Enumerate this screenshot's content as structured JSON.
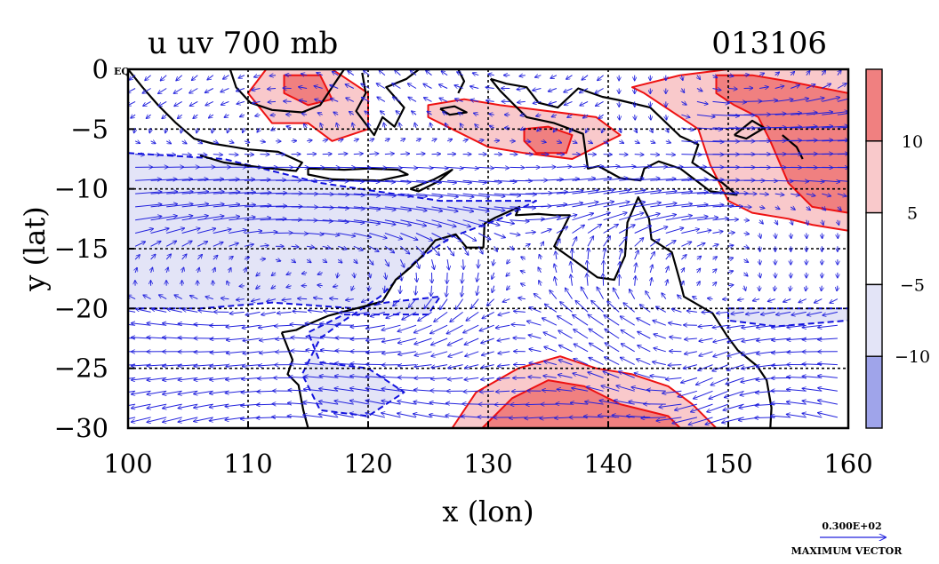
{
  "chart_data": {
    "type": "heatmap",
    "title": "u uv 700 mb",
    "date_label": "013106",
    "xlabel": "x (lon)",
    "ylabel": "y (lat)",
    "xlim": [
      100,
      160
    ],
    "ylim": [
      -30,
      0
    ],
    "x_ticks": [
      100,
      110,
      120,
      130,
      140,
      150,
      160
    ],
    "y_ticks": [
      0,
      -5,
      -10,
      -15,
      -20,
      -25,
      -30
    ],
    "y_tick_labels": [
      "0",
      "−5",
      "−10",
      "−15",
      "−20",
      "−25",
      "−30"
    ],
    "zero_tick_suffix": "EQ",
    "grid": true,
    "colorbar": {
      "tick_labels": [
        "10",
        "5",
        "−5",
        "−10"
      ],
      "bins": [
        {
          "range": "> 10",
          "color": "#f08080"
        },
        {
          "range": "5 to 10",
          "color": "#f9c9cb"
        },
        {
          "range": "-5 to 5",
          "color": "#ffffff"
        },
        {
          "range": "-10 to -5",
          "color": "#e3e4f7"
        },
        {
          "range": "< -10",
          "color": "#9fa4ea"
        }
      ]
    },
    "vector_key": {
      "magnitude_label": "0.300E+02",
      "caption": "MAXIMUM VECTOR",
      "magnitude": 30
    },
    "contour_colors": {
      "positive": "#ee1111",
      "negative": "#1111dd",
      "coast": "#000000",
      "vectors": "#2222dd"
    },
    "regions": [
      {
        "level": "pos_weak",
        "points": [
          [
            111.5,
            0
          ],
          [
            117,
            0
          ],
          [
            120,
            -2
          ],
          [
            120,
            -5
          ],
          [
            117,
            -6
          ],
          [
            115,
            -4.5
          ],
          [
            112,
            -4.5
          ],
          [
            110,
            -2
          ]
        ]
      },
      {
        "level": "pos_strong",
        "points": [
          [
            113,
            -0.5
          ],
          [
            116,
            -0.5
          ],
          [
            117,
            -2.5
          ],
          [
            115,
            -3
          ],
          [
            113,
            -2
          ]
        ]
      },
      {
        "level": "pos_weak",
        "points": [
          [
            125,
            -3
          ],
          [
            128,
            -2.5
          ],
          [
            131,
            -3
          ],
          [
            135,
            -3.5
          ],
          [
            139,
            -4
          ],
          [
            141,
            -5.5
          ],
          [
            137,
            -7.5
          ],
          [
            133,
            -7
          ],
          [
            130,
            -6.5
          ],
          [
            127,
            -5
          ],
          [
            125,
            -4
          ]
        ]
      },
      {
        "level": "pos_strong",
        "points": [
          [
            133,
            -5
          ],
          [
            135,
            -4.8
          ],
          [
            137,
            -5.5
          ],
          [
            136.5,
            -7
          ],
          [
            134,
            -7
          ],
          [
            133,
            -6
          ]
        ]
      },
      {
        "level": "pos_weak",
        "points": [
          [
            142,
            -1.5
          ],
          [
            146,
            -0.5
          ],
          [
            150,
            0
          ],
          [
            156,
            0
          ],
          [
            160,
            0
          ],
          [
            160,
            -13.5
          ],
          [
            157,
            -13
          ],
          [
            155,
            -12.5
          ],
          [
            152,
            -12
          ],
          [
            150,
            -11
          ],
          [
            148.5,
            -8
          ],
          [
            147.5,
            -5
          ],
          [
            144.5,
            -3
          ],
          [
            143,
            -2
          ]
        ]
      },
      {
        "level": "pos_strong",
        "points": [
          [
            149,
            -0.5
          ],
          [
            152,
            -0.5
          ],
          [
            155,
            -1
          ],
          [
            160,
            -2
          ],
          [
            160,
            -12
          ],
          [
            157,
            -11.5
          ],
          [
            155,
            -9.5
          ],
          [
            153.5,
            -6
          ],
          [
            152.5,
            -4
          ],
          [
            150.5,
            -3
          ],
          [
            149,
            -2
          ]
        ]
      },
      {
        "level": "pos_weak",
        "points": [
          [
            127,
            -30
          ],
          [
            129,
            -27
          ],
          [
            132.5,
            -25
          ],
          [
            136,
            -24
          ],
          [
            139,
            -25
          ],
          [
            142,
            -25.5
          ],
          [
            145,
            -26.5
          ],
          [
            147,
            -28
          ],
          [
            149,
            -30
          ]
        ]
      },
      {
        "level": "pos_strong",
        "points": [
          [
            129.5,
            -30
          ],
          [
            132,
            -27.5
          ],
          [
            135,
            -26
          ],
          [
            138,
            -26.5
          ],
          [
            141,
            -28
          ],
          [
            145,
            -29
          ],
          [
            146,
            -30
          ]
        ]
      },
      {
        "level": "neg_weak",
        "points": [
          [
            100,
            -7
          ],
          [
            108,
            -7.5
          ],
          [
            116,
            -9.5
          ],
          [
            126,
            -11
          ],
          [
            134,
            -11
          ],
          [
            131,
            -12.5
          ],
          [
            127,
            -14
          ],
          [
            124,
            -16
          ],
          [
            121,
            -19
          ],
          [
            118,
            -21
          ],
          [
            116,
            -22.5
          ],
          [
            114.5,
            -25.5
          ],
          [
            116,
            -28.5
          ],
          [
            120,
            -29
          ],
          [
            123,
            -27
          ],
          [
            120,
            -25
          ],
          [
            116,
            -24.5
          ],
          [
            115,
            -22
          ],
          [
            118,
            -20.5
          ],
          [
            125,
            -20.5
          ],
          [
            126,
            -19
          ],
          [
            121.5,
            -19.5
          ],
          [
            119,
            -20
          ],
          [
            112,
            -19.5
          ],
          [
            106,
            -20
          ],
          [
            100,
            -20
          ]
        ]
      },
      {
        "level": "neg_weak",
        "points": [
          [
            150,
            -20
          ],
          [
            160,
            -20
          ],
          [
            160,
            -21
          ],
          [
            154,
            -21.5
          ],
          [
            150,
            -21
          ]
        ]
      }
    ],
    "coastlines": [
      [
        [
          100,
          0
        ],
        [
          101.2,
          -1.5
        ],
        [
          102.5,
          -3
        ],
        [
          104,
          -4.5
        ],
        [
          105.5,
          -5.8
        ],
        [
          107,
          -6.2
        ],
        [
          110,
          -6.7
        ],
        [
          112.5,
          -6.9
        ],
        [
          114.5,
          -7.8
        ],
        [
          114,
          -8.5
        ],
        [
          111,
          -8.2
        ],
        [
          108,
          -7.8
        ],
        [
          106,
          -7.2
        ]
      ],
      [
        [
          115,
          -8.3
        ],
        [
          118,
          -8.4
        ],
        [
          120,
          -8.3
        ],
        [
          122.5,
          -8.4
        ],
        [
          123.3,
          -8.8
        ],
        [
          121,
          -9.3
        ],
        [
          117,
          -9.2
        ],
        [
          115,
          -8.8
        ],
        [
          115,
          -8.3
        ]
      ],
      [
        [
          123.5,
          -10
        ],
        [
          125.5,
          -9.2
        ],
        [
          127,
          -8.4
        ],
        [
          125.8,
          -9.4
        ],
        [
          124.2,
          -10.2
        ],
        [
          123.5,
          -10
        ]
      ],
      [
        [
          108.5,
          0
        ],
        [
          109,
          -1.5
        ],
        [
          110.2,
          -2.8
        ],
        [
          112,
          -3.4
        ],
        [
          114.5,
          -3.6
        ],
        [
          116,
          -3
        ],
        [
          117,
          -1.5
        ],
        [
          118,
          0
        ]
      ],
      [
        [
          119.5,
          -0.3
        ],
        [
          119.8,
          -2
        ],
        [
          119,
          -3.5
        ],
        [
          120.5,
          -5.5
        ],
        [
          121.2,
          -4
        ],
        [
          122.2,
          -4.8
        ],
        [
          123,
          -3.2
        ],
        [
          121.5,
          -1.5
        ],
        [
          123.2,
          -0.8
        ],
        [
          124.5,
          0.2
        ]
      ],
      [
        [
          127.5,
          0
        ],
        [
          128,
          -1
        ],
        [
          127.5,
          -2
        ]
      ],
      [
        [
          126,
          -3.3
        ],
        [
          127.2,
          -3.1
        ],
        [
          128.2,
          -3.6
        ],
        [
          126.8,
          -3.8
        ],
        [
          126,
          -3.3
        ]
      ],
      [
        [
          130.2,
          -0.8
        ],
        [
          131.5,
          -1.2
        ],
        [
          133.2,
          -1.5
        ],
        [
          134.2,
          -2.8
        ],
        [
          135.8,
          -3.2
        ],
        [
          137.5,
          -1.6
        ],
        [
          139.5,
          -2.3
        ],
        [
          141,
          -2.6
        ],
        [
          143.5,
          -3.2
        ],
        [
          146,
          -5.6
        ],
        [
          147.5,
          -6.3
        ],
        [
          147,
          -7.8
        ],
        [
          149.5,
          -9.5
        ],
        [
          150.7,
          -10.5
        ],
        [
          148.5,
          -10.2
        ],
        [
          146,
          -8.3
        ],
        [
          144.2,
          -7.7
        ],
        [
          143,
          -8.3
        ],
        [
          142.7,
          -9.3
        ],
        [
          141,
          -9.1
        ],
        [
          139.2,
          -8.1
        ],
        [
          138.3,
          -8.3
        ],
        [
          137.9,
          -5.4
        ],
        [
          135.5,
          -4.5
        ],
        [
          133.2,
          -4
        ],
        [
          132.1,
          -2.9
        ],
        [
          131,
          -1.8
        ],
        [
          130.2,
          -0.8
        ]
      ],
      [
        [
          150.5,
          -5.5
        ],
        [
          152,
          -4.3
        ],
        [
          153,
          -4.9
        ],
        [
          151.5,
          -5.8
        ],
        [
          150.5,
          -5.5
        ]
      ],
      [
        [
          154.5,
          -5.5
        ],
        [
          155.7,
          -6.5
        ],
        [
          156.2,
          -7.5
        ]
      ],
      [
        [
          112.8,
          -22
        ],
        [
          114,
          -21.8
        ],
        [
          114.6,
          -21.5
        ],
        [
          116.7,
          -20.6
        ],
        [
          119,
          -20
        ],
        [
          121.2,
          -19.4
        ],
        [
          122.3,
          -17.6
        ],
        [
          123.5,
          -16.6
        ],
        [
          124.5,
          -15.6
        ],
        [
          125.6,
          -14.3
        ],
        [
          127.3,
          -13.8
        ],
        [
          128.2,
          -14.9
        ],
        [
          129.6,
          -14.9
        ],
        [
          129.7,
          -12.9
        ],
        [
          130.6,
          -12.4
        ],
        [
          132.6,
          -11.5
        ],
        [
          132.3,
          -12.2
        ],
        [
          134.2,
          -12.1
        ],
        [
          135.5,
          -12.2
        ],
        [
          136.8,
          -12.2
        ],
        [
          136.2,
          -13.4
        ],
        [
          135.5,
          -14.8
        ],
        [
          137.2,
          -16
        ],
        [
          139.1,
          -17.4
        ],
        [
          140.5,
          -17.6
        ],
        [
          141.4,
          -15.6
        ],
        [
          141.6,
          -12.8
        ],
        [
          142.5,
          -10.7
        ],
        [
          143.4,
          -12.5
        ],
        [
          143.6,
          -14.2
        ],
        [
          145.3,
          -15.3
        ],
        [
          146,
          -17.8
        ],
        [
          146.3,
          -19
        ],
        [
          148.7,
          -20.4
        ],
        [
          149.9,
          -22.3
        ],
        [
          150.8,
          -23.5
        ],
        [
          152.4,
          -24.8
        ],
        [
          153.2,
          -26
        ],
        [
          153.6,
          -28.3
        ],
        [
          153.5,
          -30
        ]
      ],
      [
        [
          112.8,
          -22
        ],
        [
          113.7,
          -24.3
        ],
        [
          113.3,
          -25.5
        ],
        [
          114.2,
          -26.4
        ],
        [
          114.6,
          -28.5
        ],
        [
          115,
          -30
        ]
      ]
    ],
    "wind_vectors": {
      "description": "700 mb wind field (u,v in m/s) sampled on a regular lat-lon grid",
      "features": [
        {
          "type": "westerly_band",
          "lat_range": [
            -15,
            -8
          ],
          "lon_range": [
            100,
            145
          ],
          "u": 15
        },
        {
          "type": "easterly_band",
          "lat_range": [
            -30,
            -20
          ],
          "lon_range": [
            100,
            160
          ],
          "u": -9
        },
        {
          "type": "monsoon_low",
          "lon": 133,
          "lat": -19
        },
        {
          "type": "anticyclone",
          "lon": 146,
          "lat": -27
        },
        {
          "type": "westerly_jet",
          "lat_range": [
            -10,
            -2
          ],
          "lon_range": [
            148,
            160
          ],
          "u": 20
        }
      ]
    }
  }
}
